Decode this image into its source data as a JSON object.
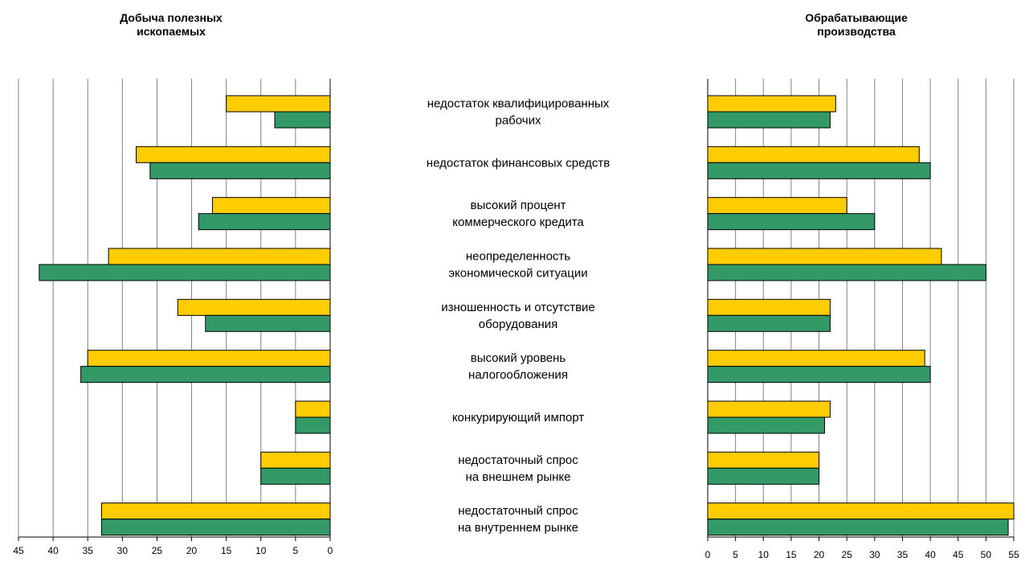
{
  "chart_data": [
    {
      "type": "bar",
      "orientation": "horizontal",
      "direction": "right-to-left",
      "title": "Добыча полезных\nископаемых",
      "categories": [
        "недостаток квалифицированных\nрабочих",
        "недостаток финансовых средств",
        "высокий процент\nкоммерческого кредита",
        "неопределенность\nэкономической ситуации",
        "изношенность и отсутствие\nоборудования",
        "высокий уровень\nналогообложения",
        "конкурирующий импорт",
        "недостаточный спрос\nна внешнем рынке",
        "недостаточный спрос\nна внутреннем рынке"
      ],
      "series": [
        {
          "color": "#ffcc00",
          "values": [
            15,
            28,
            17,
            32,
            22,
            35,
            5,
            10,
            33
          ]
        },
        {
          "color": "#339966",
          "values": [
            8,
            26,
            19,
            42,
            18,
            36,
            5,
            10,
            33
          ]
        }
      ],
      "xlim": [
        0,
        45
      ],
      "xticks": [
        "45",
        "40",
        "35",
        "30",
        "25",
        "20",
        "15",
        "10",
        "5",
        "0"
      ],
      "grid": true
    },
    {
      "type": "bar",
      "orientation": "horizontal",
      "direction": "left-to-right",
      "title": "Обрабатывающие\nпроизводства",
      "categories": [
        "недостаток квалифицированных\nрабочих",
        "недостаток финансовых средств",
        "высокий процент\nкоммерческого кредита",
        "неопределенность\nэкономической ситуации",
        "изношенность и отсутствие\nоборудования",
        "высокий уровень\nналогообложения",
        "конкурирующий импорт",
        "недостаточный спрос\nна внешнем рынке",
        "недостаточный спрос\nна внутреннем рынке"
      ],
      "series": [
        {
          "color": "#ffcc00",
          "values": [
            23,
            38,
            25,
            42,
            22,
            39,
            22,
            20,
            55
          ]
        },
        {
          "color": "#339966",
          "values": [
            22,
            40,
            30,
            50,
            22,
            40,
            21,
            20,
            54
          ]
        }
      ],
      "xlim": [
        0,
        55
      ],
      "xticks": [
        "0",
        "5",
        "10",
        "15",
        "20",
        "25",
        "30",
        "35",
        "40",
        "45",
        "50",
        "55"
      ],
      "grid": true
    }
  ]
}
